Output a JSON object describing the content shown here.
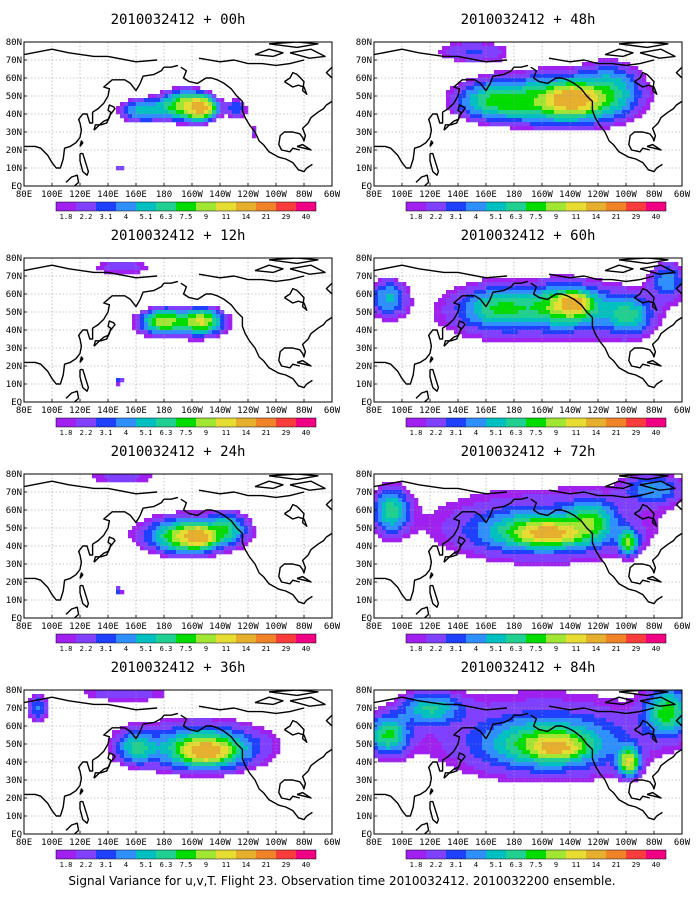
{
  "caption": "Signal Variance for u,v,T. Flight 23. Observation time 2010032412. 2010032200 ensemble.",
  "colors": {
    "background": "#ffffff",
    "coast": "#000000",
    "grid": "#9a9a9a",
    "levels": [
      "#a020f0",
      "#8040ff",
      "#2040ff",
      "#2f8fff",
      "#00c0c0",
      "#20d090",
      "#00dc00",
      "#a0e632",
      "#e6dc32",
      "#e6af2d",
      "#f08228",
      "#fa3c3c",
      "#f00082"
    ]
  },
  "chart_data": [
    {
      "type": "heatmap",
      "panel": "left-1",
      "title": "2010032412 + 00h",
      "lead_hours": 0,
      "x_ticks": [
        "80E",
        "100E",
        "120E",
        "140E",
        "160E",
        "180",
        "160W",
        "140W",
        "120W",
        "100W",
        "80W",
        "60W"
      ],
      "y_ticks": [
        "80N",
        "70N",
        "60N",
        "50N",
        "40N",
        "30N",
        "20N",
        "10N",
        "EQ"
      ],
      "colorbar_labels": [
        "1.8",
        "2.2",
        "3.1",
        "4",
        "5.1",
        "6.3",
        "7.5",
        "9",
        "11",
        "14",
        "21",
        "29",
        "40"
      ],
      "blobs": [
        {
          "lon": 165,
          "lat": 42,
          "rlon": 18,
          "rlat": 7,
          "peak": 5.5
        },
        {
          "lon": 195,
          "lat": 45,
          "rlon": 16,
          "rlat": 8,
          "peak": 9.5
        },
        {
          "lon": 208,
          "lat": 43,
          "rlon": 10,
          "rlat": 6,
          "peak": 11
        },
        {
          "lon": 232,
          "lat": 43,
          "rlon": 8,
          "rlat": 6,
          "peak": 4
        },
        {
          "lon": 148,
          "lat": 10,
          "rlon": 4,
          "rlat": 3,
          "peak": 3.2
        },
        {
          "lon": 245,
          "lat": 30,
          "rlon": 3,
          "rlat": 4,
          "peak": 2.6
        }
      ]
    },
    {
      "type": "heatmap",
      "panel": "right-1",
      "title": "2010032412 + 48h",
      "lead_hours": 48,
      "x_ticks": [
        "80E",
        "100E",
        "120E",
        "140E",
        "160E",
        "180",
        "160W",
        "140W",
        "120W",
        "100W",
        "80W",
        "60W"
      ],
      "y_ticks": [
        "80N",
        "70N",
        "60N",
        "50N",
        "40N",
        "30N",
        "20N",
        "10N",
        "EQ"
      ],
      "colorbar_labels": [
        "1.8",
        "2.2",
        "3.1",
        "4",
        "5.1",
        "6.3",
        "7.5",
        "9",
        "11",
        "14",
        "21",
        "29",
        "40"
      ],
      "blobs": [
        {
          "lon": 210,
          "lat": 50,
          "rlon": 80,
          "rlat": 18,
          "peak": 2.6
        },
        {
          "lon": 165,
          "lat": 47,
          "rlon": 25,
          "rlat": 10,
          "peak": 5.5
        },
        {
          "lon": 215,
          "lat": 47,
          "rlon": 35,
          "rlat": 12,
          "peak": 7.2
        },
        {
          "lon": 222,
          "lat": 48,
          "rlon": 14,
          "rlat": 6,
          "peak": 11
        },
        {
          "lon": 250,
          "lat": 55,
          "rlon": 20,
          "rlat": 15,
          "peak": 3.5
        },
        {
          "lon": 150,
          "lat": 75,
          "rlon": 30,
          "rlat": 7,
          "peak": 3
        }
      ]
    },
    {
      "type": "heatmap",
      "panel": "left-2",
      "title": "2010032412 + 12h",
      "lead_hours": 12,
      "x_ticks": [
        "80E",
        "100E",
        "120E",
        "140E",
        "160E",
        "180",
        "160W",
        "140W",
        "120W",
        "100W",
        "80W",
        "60W"
      ],
      "y_ticks": [
        "80N",
        "70N",
        "60N",
        "50N",
        "40N",
        "30N",
        "20N",
        "10N",
        "EQ"
      ],
      "colorbar_labels": [
        "1.8",
        "2.2",
        "3.1",
        "4",
        "5.1",
        "6.3",
        "7.5",
        "9",
        "11",
        "14",
        "21",
        "29",
        "40"
      ],
      "blobs": [
        {
          "lon": 195,
          "lat": 43,
          "rlon": 45,
          "rlat": 11,
          "peak": 2.8
        },
        {
          "lon": 180,
          "lat": 45,
          "rlon": 14,
          "rlat": 6,
          "peak": 8
        },
        {
          "lon": 207,
          "lat": 45,
          "rlon": 12,
          "rlat": 6,
          "peak": 9
        },
        {
          "lon": 150,
          "lat": 75,
          "rlon": 30,
          "rlat": 6,
          "peak": 2.6
        },
        {
          "lon": 148,
          "lat": 12,
          "rlon": 3,
          "rlat": 3,
          "peak": 3.5
        }
      ]
    },
    {
      "type": "heatmap",
      "panel": "right-2",
      "title": "2010032412 + 60h",
      "lead_hours": 60,
      "x_ticks": [
        "80E",
        "100E",
        "120E",
        "140E",
        "160E",
        "180",
        "160W",
        "140W",
        "120W",
        "100W",
        "80W",
        "60W"
      ],
      "y_ticks": [
        "80N",
        "70N",
        "60N",
        "50N",
        "40N",
        "30N",
        "20N",
        "10N",
        "EQ"
      ],
      "colorbar_labels": [
        "1.8",
        "2.2",
        "3.1",
        "4",
        "5.1",
        "6.3",
        "7.5",
        "9",
        "11",
        "14",
        "21",
        "29",
        "40"
      ],
      "blobs": [
        {
          "lon": 200,
          "lat": 50,
          "rlon": 110,
          "rlat": 25,
          "peak": 2.8
        },
        {
          "lon": 170,
          "lat": 52,
          "rlon": 25,
          "rlat": 10,
          "peak": 5.2
        },
        {
          "lon": 218,
          "lat": 53,
          "rlon": 25,
          "rlat": 10,
          "peak": 7
        },
        {
          "lon": 222,
          "lat": 55,
          "rlon": 10,
          "rlat": 5,
          "peak": 10
        },
        {
          "lon": 90,
          "lat": 58,
          "rlon": 12,
          "rlat": 10,
          "peak": 4.5
        },
        {
          "lon": 262,
          "lat": 48,
          "rlon": 15,
          "rlat": 10,
          "peak": 5
        },
        {
          "lon": 290,
          "lat": 68,
          "rlon": 12,
          "rlat": 10,
          "peak": 4
        }
      ]
    },
    {
      "type": "heatmap",
      "panel": "left-3",
      "title": "2010032412 + 24h",
      "lead_hours": 24,
      "x_ticks": [
        "80E",
        "100E",
        "120E",
        "140E",
        "160E",
        "180",
        "160W",
        "140W",
        "120W",
        "100W",
        "80W",
        "60W"
      ],
      "y_ticks": [
        "80N",
        "70N",
        "60N",
        "50N",
        "40N",
        "30N",
        "20N",
        "10N",
        "EQ"
      ],
      "colorbar_labels": [
        "1.8",
        "2.2",
        "3.1",
        "4",
        "5.1",
        "6.3",
        "7.5",
        "9",
        "11",
        "14",
        "21",
        "29",
        "40"
      ],
      "blobs": [
        {
          "lon": 200,
          "lat": 47,
          "rlon": 55,
          "rlat": 14,
          "peak": 3.2
        },
        {
          "lon": 195,
          "lat": 45,
          "rlon": 20,
          "rlat": 8,
          "peak": 7.5
        },
        {
          "lon": 205,
          "lat": 45,
          "rlon": 10,
          "rlat": 5,
          "peak": 10
        },
        {
          "lon": 225,
          "lat": 50,
          "rlon": 12,
          "rlat": 8,
          "peak": 4.5
        },
        {
          "lon": 150,
          "lat": 78,
          "rlon": 35,
          "rlat": 5,
          "peak": 2.6
        },
        {
          "lon": 148,
          "lat": 15,
          "rlon": 3,
          "rlat": 3,
          "peak": 3.5
        }
      ]
    },
    {
      "type": "heatmap",
      "panel": "right-3",
      "title": "2010032412 + 72h",
      "lead_hours": 72,
      "x_ticks": [
        "80E",
        "100E",
        "120E",
        "140E",
        "160E",
        "180",
        "160W",
        "140W",
        "120W",
        "100W",
        "80W",
        "60W"
      ],
      "y_ticks": [
        "80N",
        "70N",
        "60N",
        "50N",
        "40N",
        "30N",
        "20N",
        "10N",
        "EQ"
      ],
      "colorbar_labels": [
        "1.8",
        "2.2",
        "3.1",
        "4",
        "5.1",
        "6.3",
        "7.5",
        "9",
        "11",
        "14",
        "21",
        "29",
        "40"
      ],
      "blobs": [
        {
          "lon": 200,
          "lat": 52,
          "rlon": 120,
          "rlat": 30,
          "peak": 2.8
        },
        {
          "lon": 92,
          "lat": 60,
          "rlon": 12,
          "rlat": 12,
          "peak": 6
        },
        {
          "lon": 200,
          "lat": 48,
          "rlon": 40,
          "rlat": 10,
          "peak": 6.5
        },
        {
          "lon": 205,
          "lat": 47,
          "rlon": 18,
          "rlat": 5,
          "peak": 8.5
        },
        {
          "lon": 235,
          "lat": 55,
          "rlon": 15,
          "rlat": 10,
          "peak": 4.5
        },
        {
          "lon": 262,
          "lat": 42,
          "rlon": 6,
          "rlat": 6,
          "peak": 8
        },
        {
          "lon": 280,
          "lat": 72,
          "rlon": 20,
          "rlat": 8,
          "peak": 4
        }
      ]
    },
    {
      "type": "heatmap",
      "panel": "left-4",
      "title": "2010032412 + 36h",
      "lead_hours": 36,
      "x_ticks": [
        "80E",
        "100E",
        "120E",
        "140E",
        "160E",
        "180",
        "160W",
        "140W",
        "120W",
        "100W",
        "80W",
        "60W"
      ],
      "y_ticks": [
        "80N",
        "70N",
        "60N",
        "50N",
        "40N",
        "30N",
        "20N",
        "10N",
        "EQ"
      ],
      "colorbar_labels": [
        "1.8",
        "2.2",
        "3.1",
        "4",
        "5.1",
        "6.3",
        "7.5",
        "9",
        "11",
        "14",
        "21",
        "29",
        "40"
      ],
      "blobs": [
        {
          "lon": 200,
          "lat": 50,
          "rlon": 80,
          "rlat": 20,
          "peak": 2.8
        },
        {
          "lon": 210,
          "lat": 47,
          "rlon": 30,
          "rlat": 10,
          "peak": 7
        },
        {
          "lon": 210,
          "lat": 46,
          "rlon": 14,
          "rlat": 5,
          "peak": 10
        },
        {
          "lon": 160,
          "lat": 48,
          "rlon": 12,
          "rlat": 8,
          "peak": 4.5
        },
        {
          "lon": 90,
          "lat": 70,
          "rlon": 8,
          "rlat": 8,
          "peak": 4
        },
        {
          "lon": 150,
          "lat": 78,
          "rlon": 40,
          "rlat": 5,
          "peak": 2.6
        }
      ]
    },
    {
      "type": "heatmap",
      "panel": "right-4",
      "title": "2010032412 + 84h",
      "lead_hours": 84,
      "x_ticks": [
        "80E",
        "100E",
        "120E",
        "140E",
        "160E",
        "180",
        "160W",
        "140W",
        "120W",
        "100W",
        "80W",
        "60W"
      ],
      "y_ticks": [
        "80N",
        "70N",
        "60N",
        "50N",
        "40N",
        "30N",
        "20N",
        "10N",
        "EQ"
      ],
      "colorbar_labels": [
        "1.8",
        "2.2",
        "3.1",
        "4",
        "5.1",
        "6.3",
        "7.5",
        "9",
        "11",
        "14",
        "21",
        "29",
        "40"
      ],
      "blobs": [
        {
          "lon": 200,
          "lat": 55,
          "rlon": 125,
          "rlat": 35,
          "peak": 2.9
        },
        {
          "lon": 90,
          "lat": 55,
          "rlon": 14,
          "rlat": 10,
          "peak": 6.5
        },
        {
          "lon": 120,
          "lat": 70,
          "rlon": 20,
          "rlat": 8,
          "peak": 5
        },
        {
          "lon": 205,
          "lat": 50,
          "rlon": 40,
          "rlat": 12,
          "peak": 6.5
        },
        {
          "lon": 210,
          "lat": 48,
          "rlon": 15,
          "rlat": 5,
          "peak": 8.5
        },
        {
          "lon": 262,
          "lat": 40,
          "rlon": 7,
          "rlat": 7,
          "peak": 10
        },
        {
          "lon": 290,
          "lat": 68,
          "rlon": 15,
          "rlat": 12,
          "peak": 7
        }
      ]
    }
  ]
}
